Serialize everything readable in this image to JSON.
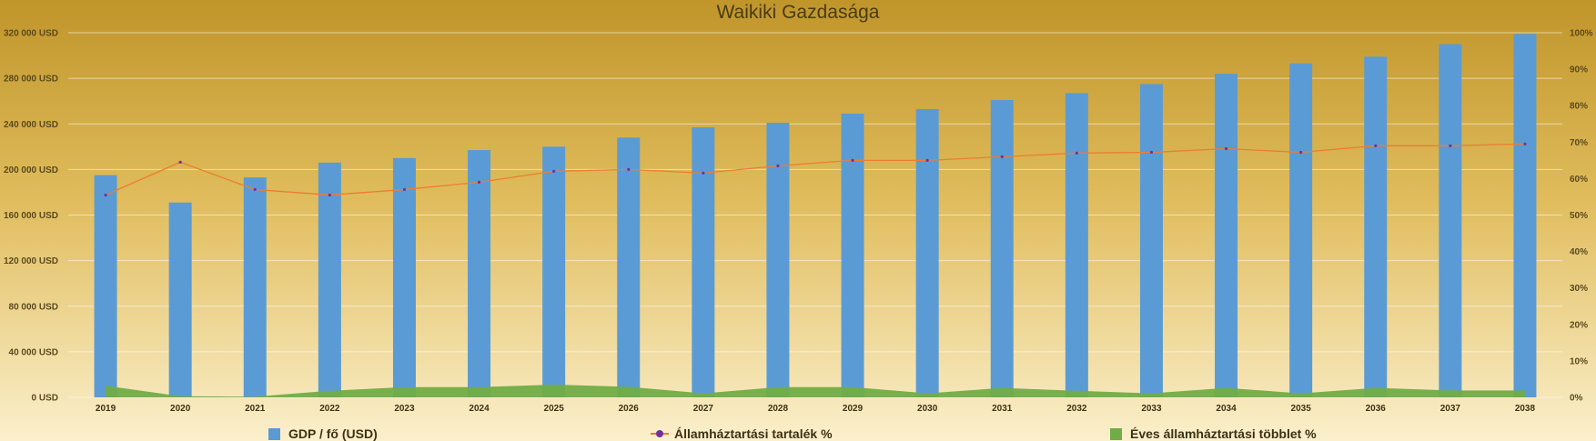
{
  "chart_data": {
    "type": "bar",
    "title": "Waikiki Gazdasága",
    "categories": [
      "2019",
      "2020",
      "2021",
      "2022",
      "2023",
      "2024",
      "2025",
      "2026",
      "2027",
      "2028",
      "2029",
      "2030",
      "2031",
      "2032",
      "2033",
      "2034",
      "2035",
      "2036",
      "2037",
      "2038"
    ],
    "series": [
      {
        "name": "GDP / fő (USD)",
        "type": "bar",
        "axis": "left",
        "color": "#5b9bd5",
        "values": [
          195000,
          171000,
          193000,
          206000,
          210000,
          217000,
          220000,
          228000,
          237000,
          241000,
          249000,
          253000,
          261000,
          267000,
          275000,
          284000,
          293000,
          299000,
          310000,
          319000
        ]
      },
      {
        "name": "Államháztartási tartalék %",
        "type": "line",
        "axis": "right",
        "color": "#ed7d31",
        "marker_color": "#7030a0",
        "values": [
          55.5,
          64.5,
          57,
          55.5,
          57,
          59,
          62,
          62.5,
          61.5,
          63.5,
          65,
          65,
          66,
          67,
          67.2,
          68.2,
          67.2,
          69,
          69,
          69.5
        ]
      },
      {
        "name": "Éves államháztartási többlet %",
        "type": "area",
        "axis": "right",
        "color": "#70ad47",
        "values": [
          3.2,
          0.3,
          0.2,
          1.8,
          2.8,
          2.8,
          3.5,
          2.9,
          1.1,
          2.8,
          2.8,
          1.1,
          2.6,
          1.8,
          1.1,
          2.6,
          1.1,
          2.6,
          1.9,
          1.9
        ]
      }
    ],
    "y_left": {
      "min": 0,
      "max": 320000,
      "ticks": [
        0,
        40000,
        80000,
        120000,
        160000,
        200000,
        240000,
        280000,
        320000
      ],
      "tick_labels": [
        "0 USD",
        "40 000 USD",
        "80 000 USD",
        "120 000 USD",
        "160 000 USD",
        "200 000 USD",
        "240 000 USD",
        "280 000 USD",
        "320 000 USD"
      ]
    },
    "y_right": {
      "min": 0,
      "max": 100,
      "ticks": [
        0,
        10,
        20,
        30,
        40,
        50,
        60,
        70,
        80,
        90,
        100
      ],
      "tick_labels": [
        "0%",
        "10%",
        "20%",
        "30%",
        "40%",
        "50%",
        "60%",
        "70%",
        "80%",
        "90%",
        "100%"
      ]
    },
    "grid": true,
    "legend_position": "bottom"
  },
  "colors": {
    "background_top": "#c0952a",
    "background_mid": "#e0bc5c",
    "background_bottom": "#fbf0cc"
  }
}
